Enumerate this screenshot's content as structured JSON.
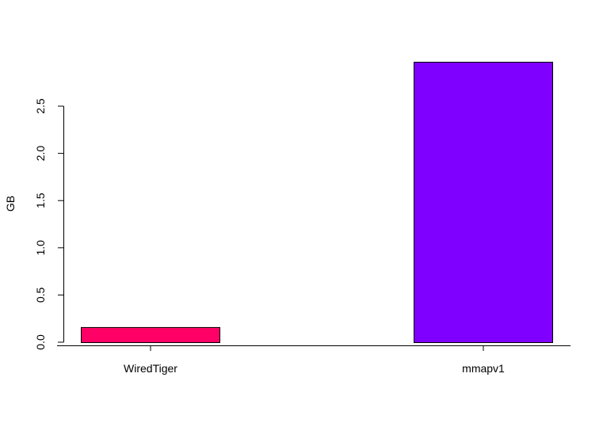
{
  "chart_data": {
    "type": "bar",
    "title": "",
    "xlabel": "",
    "ylabel": "GB",
    "categories": [
      "WiredTiger",
      "mmapv1"
    ],
    "values": [
      0.16,
      2.97
    ],
    "colors": [
      "#FF0066",
      "#8000FF"
    ],
    "ylim": [
      0,
      2.97
    ],
    "yticks": [
      0.0,
      0.5,
      1.0,
      1.5,
      2.0,
      2.5
    ],
    "ytick_labels": [
      "0.0",
      "0.5",
      "1.0",
      "1.5",
      "2.0",
      "2.5"
    ],
    "grid": false,
    "legend": "none"
  }
}
